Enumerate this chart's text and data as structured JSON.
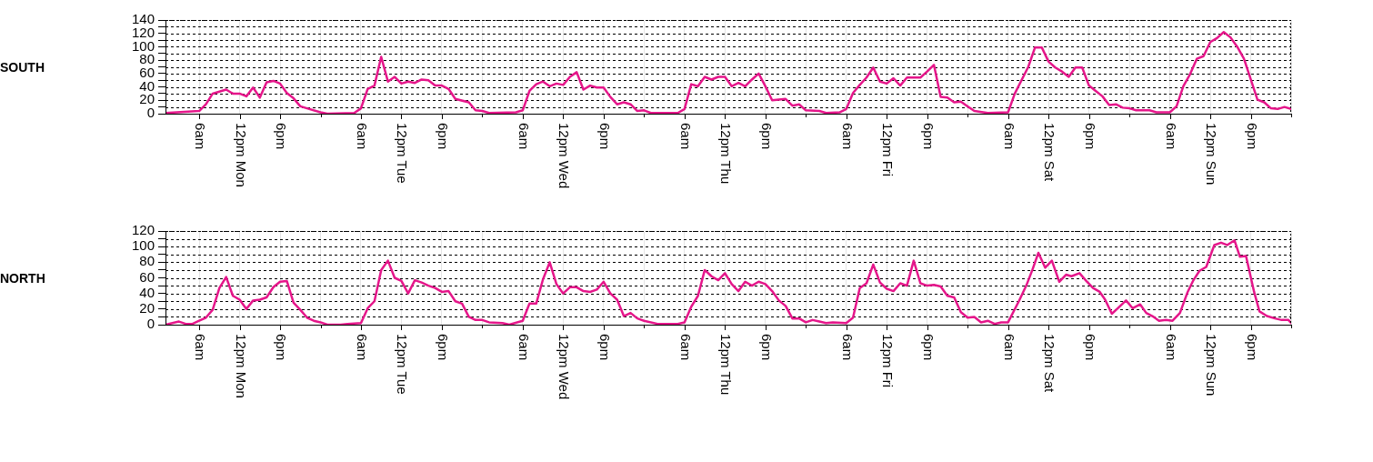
{
  "chart_data": [
    {
      "type": "line",
      "ylabel": "SOUTH",
      "color": "#e5168a",
      "marker": "none",
      "grid": true,
      "legend": false,
      "xlim": [
        "--01-01T01:00",
        "--01-08T00:00"
      ],
      "ylim": [
        0,
        140
      ],
      "yticks": [
        0,
        {
          "value": 10,
          "label": null
        },
        20,
        {
          "value": 30,
          "label": null
        },
        40,
        {
          "value": 50,
          "label": null
        },
        60,
        {
          "value": 70,
          "label": null
        },
        80,
        {
          "value": 90,
          "label": null
        },
        100,
        {
          "value": 110,
          "label": null
        },
        120,
        {
          "value": 130,
          "label": null
        },
        140
      ],
      "xticks": [
        {
          "value": "--01-01T06:00",
          "label": "6am"
        },
        {
          "value": "--01-01T12:00",
          "label": "12pm Mon"
        },
        {
          "value": "--01-01T18:00",
          "label": "6pm"
        },
        {
          "value": "--01-02T00:00",
          "label": null
        },
        {
          "value": "--01-02T06:00",
          "label": "6am"
        },
        {
          "value": "--01-02T12:00",
          "label": "12pm Tue"
        },
        {
          "value": "--01-02T18:00",
          "label": "6pm"
        },
        {
          "value": "--01-03T00:00",
          "label": null
        },
        {
          "value": "--01-03T06:00",
          "label": "6am"
        },
        {
          "value": "--01-03T12:00",
          "label": "12pm Wed"
        },
        {
          "value": "--01-03T18:00",
          "label": "6pm"
        },
        {
          "value": "--01-04T00:00",
          "label": null
        },
        {
          "value": "--01-04T06:00",
          "label": "6am"
        },
        {
          "value": "--01-04T12:00",
          "label": "12pm Thu"
        },
        {
          "value": "--01-04T18:00",
          "label": "6pm"
        },
        {
          "value": "--01-05T00:00",
          "label": null
        },
        {
          "value": "--01-05T06:00",
          "label": "6am"
        },
        {
          "value": "--01-05T12:00",
          "label": "12pm Fri"
        },
        {
          "value": "--01-05T18:00",
          "label": "6pm"
        },
        {
          "value": "--01-06T00:00",
          "label": null
        },
        {
          "value": "--01-06T06:00",
          "label": "6am"
        },
        {
          "value": "--01-06T12:00",
          "label": "12pm Sat"
        },
        {
          "value": "--01-06T18:00",
          "label": "6pm"
        },
        {
          "value": "--01-07T00:00",
          "label": null
        },
        {
          "value": "--01-07T06:00",
          "label": "6am"
        },
        {
          "value": "--01-07T12:00",
          "label": "12pm Sun"
        },
        {
          "value": "--01-07T18:00",
          "label": "6pm"
        },
        {
          "value": "--01-08T00:00",
          "label": null
        }
      ],
      "x": [
        "--01-01T01:00",
        "--01-01T06:00",
        "--01-01T07:00",
        "--01-01T08:00",
        "--01-01T10:00",
        "--01-01T11:00",
        "--01-01T12:00",
        "--01-01T13:00",
        "--01-01T14:00",
        "--01-01T15:00",
        "--01-01T16:00",
        "--01-01T17:00",
        "--01-01T18:00",
        "--01-01T19:00",
        "--01-01T20:00",
        "--01-01T21:00",
        "--01-01T22:00",
        "--01-02T00:00",
        "--01-02T01:00",
        "--01-02T05:00",
        "--01-02T06:00",
        "--01-02T07:00",
        "--01-02T08:00",
        "--01-02T09:00",
        "--01-02T10:00",
        "--01-02T11:00",
        "--01-02T12:00",
        "--01-02T13:00",
        "--01-02T14:00",
        "--01-02T15:00",
        "--01-02T16:00",
        "--01-02T17:00",
        "--01-02T18:00",
        "--01-02T19:00",
        "--01-02T20:00",
        "--01-02T22:00",
        "--01-02T23:00",
        "--01-03T00:00",
        "--01-03T01:00",
        "--01-03T05:00",
        "--01-03T06:00",
        "--01-03T07:00",
        "--01-03T08:00",
        "--01-03T09:00",
        "--01-03T10:00",
        "--01-03T11:00",
        "--01-03T12:00",
        "--01-03T13:00",
        "--01-03T14:00",
        "--01-03T15:00",
        "--01-03T16:00",
        "--01-03T17:00",
        "--01-03T18:00",
        "--01-03T19:00",
        "--01-03T20:00",
        "--01-03T21:00",
        "--01-03T22:00",
        "--01-03T23:00",
        "--01-04T00:00",
        "--01-04T01:00",
        "--01-04T05:00",
        "--01-04T06:00",
        "--01-04T07:00",
        "--01-04T08:00",
        "--01-04T09:00",
        "--01-04T10:00",
        "--01-04T11:00",
        "--01-04T12:00",
        "--01-04T13:00",
        "--01-04T14:00",
        "--01-04T15:00",
        "--01-04T16:00",
        "--01-04T17:00",
        "--01-04T18:00",
        "--01-04T19:00",
        "--01-04T21:00",
        "--01-04T22:00",
        "--01-04T23:00",
        "--01-05T00:00",
        "--01-05T02:00",
        "--01-05T03:00",
        "--01-05T05:00",
        "--01-05T06:00",
        "--01-05T07:00",
        "--01-05T08:00",
        "--01-05T09:00",
        "--01-05T10:00",
        "--01-05T11:00",
        "--01-05T12:00",
        "--01-05T13:00",
        "--01-05T14:00",
        "--01-05T15:00",
        "--01-05T17:00",
        "--01-05T18:00",
        "--01-05T19:00",
        "--01-05T20:00",
        "--01-05T21:00",
        "--01-05T22:00",
        "--01-05T23:00",
        "--01-06T00:00",
        "--01-06T01:00",
        "--01-06T03:00",
        "--01-06T06:00",
        "--01-06T07:00",
        "--01-06T09:00",
        "--01-06T10:00",
        "--01-06T11:00",
        "--01-06T12:00",
        "--01-06T13:00",
        "--01-06T14:00",
        "--01-06T15:00",
        "--01-06T16:00",
        "--01-06T17:00",
        "--01-06T18:00",
        "--01-06T19:00",
        "--01-06T20:00",
        "--01-06T21:00",
        "--01-06T22:00",
        "--01-06T23:00",
        "--01-07T00:00",
        "--01-07T01:00",
        "--01-07T03:00",
        "--01-07T04:00",
        "--01-07T06:00",
        "--01-07T07:00",
        "--01-07T08:00",
        "--01-07T09:00",
        "--01-07T10:00",
        "--01-07T11:00",
        "--01-07T12:00",
        "--01-07T13:00",
        "--01-07T14:00",
        "--01-07T15:00",
        "--01-07T16:00",
        "--01-07T17:00",
        "--01-07T19:00",
        "--01-07T20:00",
        "--01-07T21:00",
        "--01-07T22:00",
        "--01-07T23:00",
        "--01-08T00:00"
      ],
      "values": [
        1,
        4,
        14,
        30,
        36,
        30,
        30,
        26,
        39,
        24,
        47,
        49,
        45,
        31,
        23,
        11,
        8,
        2,
        0,
        1,
        8,
        37,
        42,
        85,
        48,
        55,
        45,
        48,
        46,
        51,
        50,
        42,
        42,
        37,
        22,
        17,
        5,
        4,
        1,
        2,
        5,
        34,
        44,
        48,
        41,
        45,
        43,
        55,
        62,
        36,
        42,
        39,
        39,
        25,
        14,
        17,
        14,
        4,
        5,
        1,
        1,
        7,
        44,
        41,
        55,
        51,
        55,
        55,
        41,
        46,
        41,
        51,
        60,
        41,
        20,
        22,
        12,
        14,
        5,
        4,
        1,
        2,
        7,
        31,
        43,
        54,
        69,
        48,
        45,
        53,
        42,
        54,
        54,
        63,
        73,
        25,
        24,
        17,
        18,
        11,
        4,
        1,
        2,
        30,
        70,
        99,
        99,
        78,
        69,
        63,
        55,
        69,
        69,
        42,
        34,
        26,
        13,
        14,
        9,
        8,
        5,
        5,
        2,
        2,
        11,
        41,
        59,
        82,
        86,
        107,
        113,
        122,
        114,
        100,
        82,
        21,
        17,
        8,
        7,
        10,
        7
      ]
    },
    {
      "type": "line",
      "ylabel": "NORTH",
      "color": "#e5168a",
      "marker": "none",
      "grid": true,
      "legend": false,
      "xlim": [
        "--01-01T01:00",
        "--01-08T00:00"
      ],
      "ylim": [
        0,
        120
      ],
      "yticks": [
        0,
        {
          "value": 10,
          "label": null
        },
        20,
        {
          "value": 30,
          "label": null
        },
        40,
        {
          "value": 50,
          "label": null
        },
        60,
        {
          "value": 70,
          "label": null
        },
        80,
        {
          "value": 90,
          "label": null
        },
        100,
        {
          "value": 110,
          "label": null
        },
        120
      ],
      "xticks": [
        {
          "value": "--01-01T06:00",
          "label": "6am"
        },
        {
          "value": "--01-01T12:00",
          "label": "12pm Mon"
        },
        {
          "value": "--01-01T18:00",
          "label": "6pm"
        },
        {
          "value": "--01-02T00:00",
          "label": null
        },
        {
          "value": "--01-02T06:00",
          "label": "6am"
        },
        {
          "value": "--01-02T12:00",
          "label": "12pm Tue"
        },
        {
          "value": "--01-02T18:00",
          "label": "6pm"
        },
        {
          "value": "--01-03T00:00",
          "label": null
        },
        {
          "value": "--01-03T06:00",
          "label": "6am"
        },
        {
          "value": "--01-03T12:00",
          "label": "12pm Wed"
        },
        {
          "value": "--01-03T18:00",
          "label": "6pm"
        },
        {
          "value": "--01-04T00:00",
          "label": null
        },
        {
          "value": "--01-04T06:00",
          "label": "6am"
        },
        {
          "value": "--01-04T12:00",
          "label": "12pm Thu"
        },
        {
          "value": "--01-04T18:00",
          "label": "6pm"
        },
        {
          "value": "--01-05T00:00",
          "label": null
        },
        {
          "value": "--01-05T06:00",
          "label": "6am"
        },
        {
          "value": "--01-05T12:00",
          "label": "12pm Fri"
        },
        {
          "value": "--01-05T18:00",
          "label": "6pm"
        },
        {
          "value": "--01-06T00:00",
          "label": null
        },
        {
          "value": "--01-06T06:00",
          "label": "6am"
        },
        {
          "value": "--01-06T12:00",
          "label": "12pm Sat"
        },
        {
          "value": "--01-06T18:00",
          "label": "6pm"
        },
        {
          "value": "--01-07T00:00",
          "label": null
        },
        {
          "value": "--01-07T06:00",
          "label": "6am"
        },
        {
          "value": "--01-07T12:00",
          "label": "12pm Sun"
        },
        {
          "value": "--01-07T18:00",
          "label": "6pm"
        },
        {
          "value": "--01-08T00:00",
          "label": null
        }
      ],
      "x": [
        "--01-01T01:00",
        "--01-01T03:00",
        "--01-01T04:00",
        "--01-01T05:00",
        "--01-01T06:00",
        "--01-01T07:00",
        "--01-01T08:00",
        "--01-01T09:00",
        "--01-01T10:00",
        "--01-01T11:00",
        "--01-01T12:00",
        "--01-01T13:00",
        "--01-01T14:00",
        "--01-01T15:00",
        "--01-01T16:00",
        "--01-01T17:00",
        "--01-01T18:00",
        "--01-01T19:00",
        "--01-01T20:00",
        "--01-01T21:00",
        "--01-01T22:00",
        "--01-01T23:00",
        "--01-02T00:00",
        "--01-02T01:00",
        "--01-02T03:00",
        "--01-02T04:00",
        "--01-02T06:00",
        "--01-02T07:00",
        "--01-02T08:00",
        "--01-02T09:00",
        "--01-02T10:00",
        "--01-02T11:00",
        "--01-02T12:00",
        "--01-02T13:00",
        "--01-02T14:00",
        "--01-02T15:00",
        "--01-02T16:00",
        "--01-02T17:00",
        "--01-02T18:00",
        "--01-02T19:00",
        "--01-02T20:00",
        "--01-02T21:00",
        "--01-02T22:00",
        "--01-02T23:00",
        "--01-03T00:00",
        "--01-03T01:00",
        "--01-03T03:00",
        "--01-03T04:00",
        "--01-03T06:00",
        "--01-03T07:00",
        "--01-03T08:00",
        "--01-03T09:00",
        "--01-03T10:00",
        "--01-03T11:00",
        "--01-03T12:00",
        "--01-03T13:00",
        "--01-03T14:00",
        "--01-03T15:00",
        "--01-03T16:00",
        "--01-03T17:00",
        "--01-03T18:00",
        "--01-03T19:00",
        "--01-03T20:00",
        "--01-03T21:00",
        "--01-03T22:00",
        "--01-03T23:00",
        "--01-04T00:00",
        "--01-04T02:00",
        "--01-04T05:00",
        "--01-04T06:00",
        "--01-04T07:00",
        "--01-04T08:00",
        "--01-04T09:00",
        "--01-04T10:00",
        "--01-04T11:00",
        "--01-04T12:00",
        "--01-04T13:00",
        "--01-04T14:00",
        "--01-04T15:00",
        "--01-04T16:00",
        "--01-04T17:00",
        "--01-04T18:00",
        "--01-04T19:00",
        "--01-04T20:00",
        "--01-04T21:00",
        "--01-04T22:00",
        "--01-04T23:00",
        "--01-05T00:00",
        "--01-05T01:00",
        "--01-05T02:00",
        "--01-05T03:00",
        "--01-05T04:00",
        "--01-05T06:00",
        "--01-05T07:00",
        "--01-05T08:00",
        "--01-05T09:00",
        "--01-05T10:00",
        "--01-05T11:00",
        "--01-05T12:00",
        "--01-05T13:00",
        "--01-05T14:00",
        "--01-05T15:00",
        "--01-05T16:00",
        "--01-05T17:00",
        "--01-05T18:00",
        "--01-05T19:00",
        "--01-05T20:00",
        "--01-05T21:00",
        "--01-05T22:00",
        "--01-05T23:00",
        "--01-06T00:00",
        "--01-06T01:00",
        "--01-06T02:00",
        "--01-06T03:00",
        "--01-06T04:00",
        "--01-06T05:00",
        "--01-06T06:00",
        "--01-06T07:36",
        "--01-06T08:42",
        "--01-06T09:36",
        "--01-06T10:30",
        "--01-06T11:30",
        "--01-06T12:30",
        "--01-06T13:36",
        "--01-06T14:36",
        "--01-06T15:24",
        "--01-06T16:36",
        "--01-06T17:36",
        "--01-06T18:36",
        "--01-06T19:36",
        "--01-06T20:24",
        "--01-06T21:24",
        "--01-06T22:24",
        "--01-06T23:30",
        "--01-07T00:30",
        "--01-07T01:36",
        "--01-07T02:30",
        "--01-07T03:24",
        "--01-07T04:24",
        "--01-07T05:24",
        "--01-07T06:24",
        "--01-07T07:30",
        "--01-07T08:36",
        "--01-07T09:30",
        "--01-07T10:24",
        "--01-07T11:24",
        "--01-07T12:36",
        "--01-07T13:36",
        "--01-07T14:30",
        "--01-07T15:36",
        "--01-07T16:24",
        "--01-07T17:18",
        "--01-07T18:30",
        "--01-07T19:18",
        "--01-07T20:24",
        "--01-07T21:36",
        "--01-07T22:36",
        "--01-07T23:36",
        "--01-08T00:00"
      ],
      "values": [
        0,
        4,
        1,
        1,
        5,
        9,
        19,
        47,
        61,
        37,
        32,
        20,
        31,
        32,
        35,
        48,
        55,
        56,
        28,
        19,
        9,
        5,
        3,
        0,
        0,
        1,
        2,
        21,
        30,
        70,
        82,
        60,
        56,
        40,
        57,
        54,
        50,
        47,
        42,
        43,
        30,
        27,
        10,
        6,
        6,
        3,
        2,
        0,
        5,
        27,
        27,
        58,
        80,
        52,
        40,
        48,
        48,
        43,
        42,
        45,
        55,
        40,
        32,
        11,
        15,
        8,
        5,
        1,
        1,
        3,
        23,
        37,
        70,
        62,
        57,
        66,
        52,
        43,
        55,
        50,
        55,
        52,
        43,
        31,
        24,
        8,
        8,
        3,
        6,
        4,
        2,
        3,
        2,
        9,
        47,
        53,
        77,
        54,
        46,
        43,
        53,
        50,
        82,
        53,
        50,
        51,
        49,
        37,
        35,
        16,
        9,
        10,
        3,
        5,
        1,
        3,
        3,
        30,
        50,
        70,
        92,
        73,
        82,
        55,
        64,
        62,
        66,
        56,
        47,
        42,
        32,
        14,
        22,
        31,
        21,
        26,
        15,
        11,
        5,
        6,
        5,
        15,
        41,
        57,
        69,
        74,
        102,
        105,
        102,
        108,
        87,
        88,
        42,
        17,
        11,
        8,
        6,
        6,
        2
      ]
    }
  ]
}
